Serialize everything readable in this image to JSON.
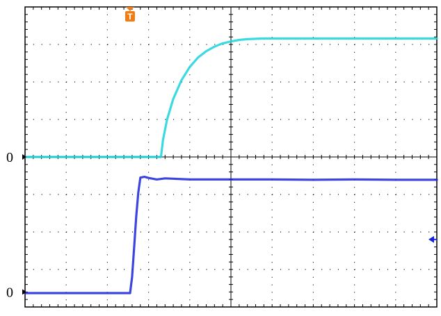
{
  "chart_data": {
    "type": "line",
    "title": "",
    "xlabel": "",
    "ylabel": "",
    "grid": true,
    "x_divisions": 10,
    "y_divisions": 8,
    "xlim": [
      0,
      10
    ],
    "ylim": [
      -4,
      4
    ],
    "trigger_marker": {
      "label": "T",
      "x": 2.55,
      "color": "#f07c18"
    },
    "reference_markers": [
      {
        "label": "0",
        "y": 0.0,
        "series": "channel-1"
      },
      {
        "label": "0",
        "y": -3.6,
        "series": "channel-2"
      }
    ],
    "right_marker": {
      "y": -2.2,
      "color": "#1a24d8"
    },
    "series": [
      {
        "id": "channel-1",
        "color": "#19d4dc",
        "x": [
          0,
          3.3,
          3.35,
          3.45,
          3.6,
          3.8,
          4.0,
          4.2,
          4.4,
          4.6,
          4.8,
          5.0,
          5.2,
          5.4,
          5.6,
          5.8,
          6.0,
          6.5,
          7.0,
          8.0,
          9.0,
          10.0
        ],
        "y": [
          0,
          0,
          0.45,
          1.0,
          1.55,
          2.05,
          2.4,
          2.65,
          2.82,
          2.94,
          3.03,
          3.08,
          3.12,
          3.14,
          3.15,
          3.16,
          3.16,
          3.16,
          3.16,
          3.16,
          3.16,
          3.16
        ]
      },
      {
        "id": "channel-2",
        "color": "#1a24d8",
        "x": [
          0,
          2.55,
          2.6,
          2.65,
          2.7,
          2.75,
          2.8,
          2.9,
          3.0,
          3.1,
          3.2,
          3.4,
          3.6,
          3.8,
          4.0,
          5.0,
          6.0,
          7.0,
          8.0,
          9.0,
          10.0
        ],
        "y": [
          -3.63,
          -3.63,
          -3.2,
          -2.4,
          -1.6,
          -0.95,
          -0.55,
          -0.53,
          -0.56,
          -0.58,
          -0.6,
          -0.57,
          -0.58,
          -0.59,
          -0.6,
          -0.6,
          -0.6,
          -0.61,
          -0.6,
          -0.61,
          -0.61
        ]
      }
    ]
  }
}
